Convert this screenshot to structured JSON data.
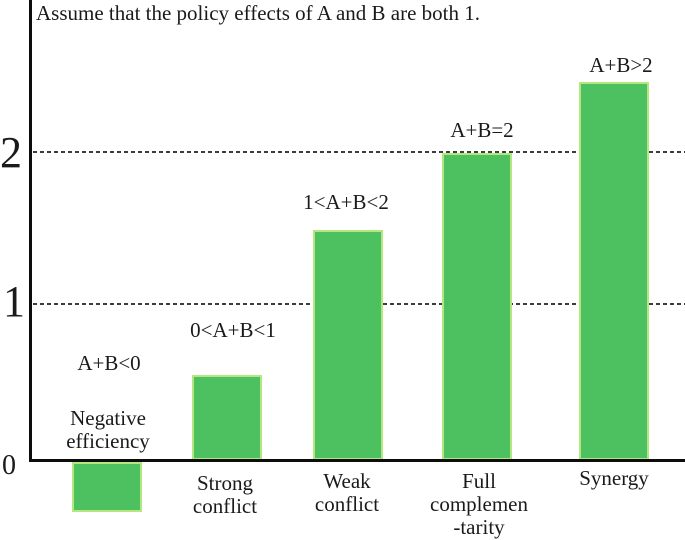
{
  "chart_data": {
    "type": "bar",
    "title": "Assume that the policy effects of A and B are both 1.",
    "categories": [
      "Negative efficiency",
      "Strong conflict",
      "Weak conflict",
      "Full complemen-tarity",
      "Synergy"
    ],
    "category_lines": [
      [
        "Negative",
        "efficiency"
      ],
      [
        "Strong",
        "conflict"
      ],
      [
        "Weak",
        "conflict"
      ],
      [
        "Full",
        "complemen",
        "-tarity"
      ],
      [
        "Synergy"
      ]
    ],
    "category_slugs": [
      "negative-efficiency",
      "strong-conflict",
      "weak-conflict",
      "full-complementarity",
      "synergy"
    ],
    "values": [
      -0.33,
      0.56,
      1.51,
      2.02,
      2.49
    ],
    "bar_labels": [
      "A+B<0",
      "0<A+B<1",
      "1<A+B<2",
      "A+B=2",
      "A+B>2"
    ],
    "ytick_labels": [
      "0",
      "1",
      "2"
    ],
    "yticks": [
      0,
      1,
      2
    ],
    "ylim": [
      -0.55,
      3.0
    ],
    "xlabel": "",
    "ylabel": "",
    "grid": "dashed horizontal lines at y=1 and y=2",
    "legend": "none",
    "bar_color": "#4dc160",
    "bar_edge_color": "#b4e77f",
    "axis_color": "#0d0d0d",
    "gridline_color": "#3c3c3c"
  }
}
